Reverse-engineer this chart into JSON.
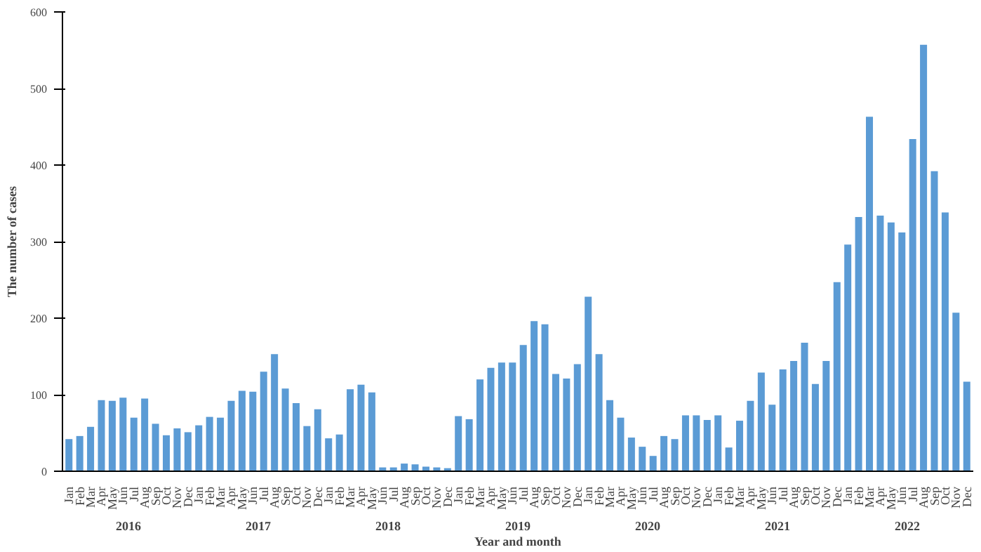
{
  "chart_data": {
    "type": "bar",
    "xlabel": "Year and month",
    "ylabel": "The number of cases",
    "color": "#5b9bd5",
    "categories": [
      "Jan",
      "Feb",
      "Mar",
      "Apr",
      "May",
      "Jun",
      "Jul",
      "Aug",
      "Sep",
      "Oct",
      "Nov",
      "Dec",
      "Jan",
      "Feb",
      "Mar",
      "Apr",
      "May",
      "Jun",
      "Jul",
      "Aug",
      "Sep",
      "Oct",
      "Nov",
      "Dec",
      "Jan",
      "Feb",
      "Mar",
      "Apr",
      "May",
      "Jun",
      "Jul",
      "Aug",
      "Sep",
      "Oct",
      "Nov",
      "Dec",
      "Jan",
      "Feb",
      "Mar",
      "Apr",
      "May",
      "Jun",
      "Jul",
      "Aug",
      "Sep",
      "Oct",
      "Nov",
      "Dec",
      "Jan",
      "Feb",
      "Mar",
      "Apr",
      "May",
      "Jun",
      "Jul",
      "Aug",
      "Sep",
      "Oct",
      "Nov",
      "Dec",
      "Jan",
      "Feb",
      "Mar",
      "Apr",
      "May",
      "Jun",
      "Jul",
      "Aug",
      "Sep",
      "Oct",
      "Nov",
      "Dec",
      "Jan",
      "Feb",
      "Mar",
      "Apr",
      "May",
      "Jun",
      "Jul",
      "Aug",
      "Sep",
      "Oct",
      "Nov",
      "Dec"
    ],
    "values": [
      42,
      46,
      58,
      93,
      92,
      96,
      70,
      95,
      62,
      47,
      56,
      51,
      60,
      71,
      70,
      92,
      105,
      104,
      130,
      153,
      108,
      89,
      59,
      81,
      43,
      48,
      107,
      113,
      103,
      5,
      5,
      10,
      9,
      6,
      5,
      4,
      72,
      68,
      120,
      135,
      142,
      142,
      165,
      196,
      192,
      127,
      121,
      140,
      228,
      153,
      93,
      70,
      44,
      32,
      20,
      46,
      42,
      73,
      73,
      67,
      73,
      31,
      66,
      92,
      129,
      87,
      133,
      144,
      168,
      114,
      144,
      247,
      296,
      332,
      463,
      334,
      325,
      312,
      434,
      557,
      392,
      338,
      207,
      117
    ],
    "annotations": [
      "2016",
      "2017",
      "2018",
      "2019",
      "2020",
      "2021",
      "2022"
    ],
    "ylim": [
      0,
      600
    ],
    "yticks": [
      0,
      100,
      200,
      300,
      400,
      500,
      600
    ],
    "grid": false
  }
}
